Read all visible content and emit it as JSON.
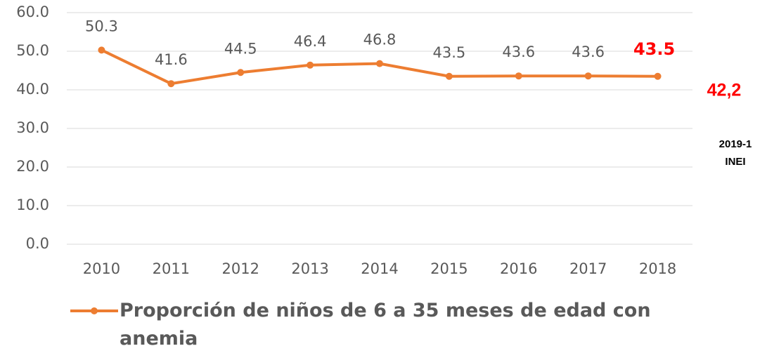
{
  "chart_data": {
    "type": "line",
    "categories": [
      "2010",
      "2011",
      "2012",
      "2013",
      "2014",
      "2015",
      "2016",
      "2017",
      "2018"
    ],
    "series": [
      {
        "name": "Proporción de niños de 6 a 35 meses de edad con anemia",
        "color": "#ed7d31",
        "values": [
          50.3,
          41.6,
          44.5,
          46.4,
          46.8,
          43.5,
          43.6,
          43.6,
          43.5
        ]
      }
    ],
    "ylim": [
      0,
      60
    ],
    "yticks": [
      {
        "value": 0,
        "label": "0.0"
      },
      {
        "value": 10,
        "label": "10.0"
      },
      {
        "value": 20,
        "label": "20.0"
      },
      {
        "value": 30,
        "label": "30.0"
      },
      {
        "value": 40,
        "label": "40.0"
      },
      {
        "value": 50,
        "label": "50.0"
      },
      {
        "value": 60,
        "label": "60.0"
      }
    ],
    "grid": true,
    "annotations": [
      "42,2",
      "2019-1",
      "INEI"
    ]
  }
}
